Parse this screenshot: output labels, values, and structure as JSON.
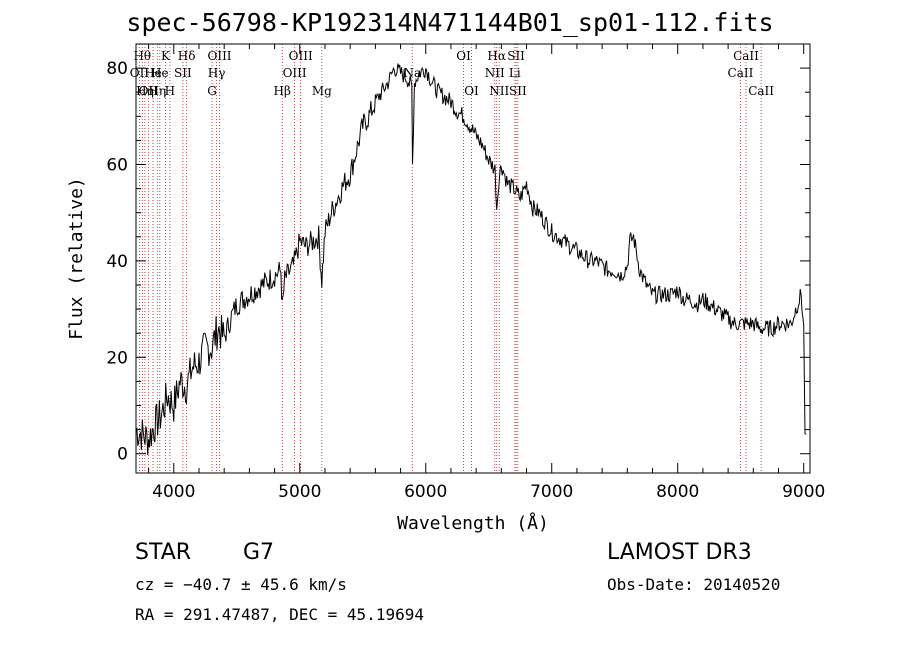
{
  "header": {
    "title": "spec-56798-KP192314N471144B01_sp01-112.fits"
  },
  "info": {
    "object_class": "STAR",
    "subclass": "G7",
    "survey": "LAMOST DR3",
    "redshift": "cz = −40.7 ± 45.6 km/s",
    "obs_date": "Obs-Date: 20140520",
    "coords": "RA = 291.47487, DEC =  45.19694"
  },
  "chart_data": {
    "type": "line",
    "title": "spec-56798-KP192314N471144B01_sp01-112.fits",
    "xlabel": "Wavelength (Å)",
    "ylabel": "Flux (relative)",
    "xlim": [
      3700,
      9050
    ],
    "ylim": [
      -4,
      85
    ],
    "xticks": [
      4000,
      5000,
      6000,
      7000,
      8000,
      9000
    ],
    "yticks": [
      0,
      20,
      40,
      60,
      80
    ],
    "grid": false,
    "series": [
      {
        "name": "flux",
        "x": [
          3700,
          3750,
          3800,
          3850,
          3900,
          3950,
          4000,
          4050,
          4100,
          4150,
          4200,
          4250,
          4300,
          4350,
          4400,
          4450,
          4500,
          4550,
          4600,
          4650,
          4700,
          4750,
          4800,
          4850,
          4861,
          4880,
          4900,
          4950,
          5000,
          5050,
          5100,
          5150,
          5175,
          5200,
          5250,
          5300,
          5350,
          5400,
          5450,
          5500,
          5550,
          5600,
          5650,
          5700,
          5750,
          5800,
          5850,
          5889,
          5895,
          5910,
          5950,
          6000,
          6050,
          6100,
          6150,
          6200,
          6250,
          6300,
          6350,
          6400,
          6450,
          6500,
          6550,
          6563,
          6580,
          6600,
          6650,
          6700,
          6750,
          6800,
          6850,
          6900,
          6950,
          7000,
          7050,
          7100,
          7150,
          7200,
          7250,
          7300,
          7350,
          7400,
          7450,
          7500,
          7550,
          7600,
          7620,
          7650,
          7700,
          7750,
          7800,
          7850,
          7900,
          7950,
          8000,
          8050,
          8100,
          8150,
          8200,
          8250,
          8300,
          8350,
          8400,
          8450,
          8500,
          8550,
          8600,
          8650,
          8700,
          8750,
          8800,
          8850,
          8900,
          8950,
          8980,
          9000,
          9010,
          9020
        ],
        "values": [
          5,
          4,
          3,
          6,
          8,
          12,
          10,
          15,
          14,
          18,
          19,
          22,
          22,
          26,
          24,
          28,
          31,
          32,
          33,
          34,
          35,
          36,
          37,
          38,
          30,
          36,
          37,
          39,
          44,
          43,
          44,
          45,
          36,
          46,
          50,
          53,
          56,
          58,
          63,
          68,
          70,
          73,
          75,
          77,
          80,
          79,
          78,
          76,
          60,
          77,
          79,
          80,
          77,
          75,
          74,
          73,
          71,
          70,
          68,
          66,
          64,
          61,
          59,
          51,
          57,
          60,
          56,
          55,
          53,
          56,
          51,
          50,
          48,
          46,
          45,
          44,
          43,
          42,
          41,
          40,
          40,
          39,
          38,
          38,
          37,
          39,
          44,
          45,
          38,
          35,
          33,
          33,
          33,
          33,
          34,
          32,
          32,
          31,
          32,
          31,
          30,
          29,
          28,
          27,
          27,
          27,
          27,
          26,
          26,
          26,
          27,
          27,
          27,
          31,
          33,
          26,
          5,
          4
        ]
      }
    ],
    "lines": [
      {
        "wavelength": 3727,
        "label": "OII",
        "row": 2
      },
      {
        "wavelength": 3750,
        "label": "Hθ",
        "row": 1
      },
      {
        "wavelength": 3771,
        "label": "Hη",
        "row": 3
      },
      {
        "wavelength": 3798,
        "label": "OII",
        "row": 3
      },
      {
        "wavelength": 3835,
        "label": "He",
        "row": 2
      },
      {
        "wavelength": 3869,
        "label": "Hη",
        "row": 3
      },
      {
        "wavelength": 3889,
        "label": "He",
        "row": 2
      },
      {
        "wavelength": 3934,
        "label": "K",
        "row": 1
      },
      {
        "wavelength": 3969,
        "label": "H",
        "row": 3
      },
      {
        "wavelength": 4072,
        "label": "SII",
        "row": 2
      },
      {
        "wavelength": 4102,
        "label": "Hδ",
        "row": 1
      },
      {
        "wavelength": 4304,
        "label": "G",
        "row": 3
      },
      {
        "wavelength": 4340,
        "label": "Hγ",
        "row": 2
      },
      {
        "wavelength": 4363,
        "label": "OIII",
        "row": 1
      },
      {
        "wavelength": 4861,
        "label": "Hβ",
        "row": 3
      },
      {
        "wavelength": 4959,
        "label": "OIII",
        "row": 2
      },
      {
        "wavelength": 5007,
        "label": "OIII",
        "row": 1
      },
      {
        "wavelength": 5175,
        "label": "Mg",
        "row": 3
      },
      {
        "wavelength": 5893,
        "label": "Na",
        "row": 2
      },
      {
        "wavelength": 6300,
        "label": "OI",
        "row": 1
      },
      {
        "wavelength": 6363,
        "label": "OI",
        "row": 3
      },
      {
        "wavelength": 6548,
        "label": "NII",
        "row": 2
      },
      {
        "wavelength": 6563,
        "label": "Hα",
        "row": 1
      },
      {
        "wavelength": 6583,
        "label": "NII",
        "row": 3
      },
      {
        "wavelength": 6707,
        "label": "Li",
        "row": 2
      },
      {
        "wavelength": 6717,
        "label": "SII",
        "row": 1
      },
      {
        "wavelength": 6731,
        "label": "SII",
        "row": 3
      },
      {
        "wavelength": 8498,
        "label": "CaII",
        "row": 2
      },
      {
        "wavelength": 8542,
        "label": "CaII",
        "row": 1
      },
      {
        "wavelength": 8662,
        "label": "CaII",
        "row": 3
      }
    ]
  }
}
